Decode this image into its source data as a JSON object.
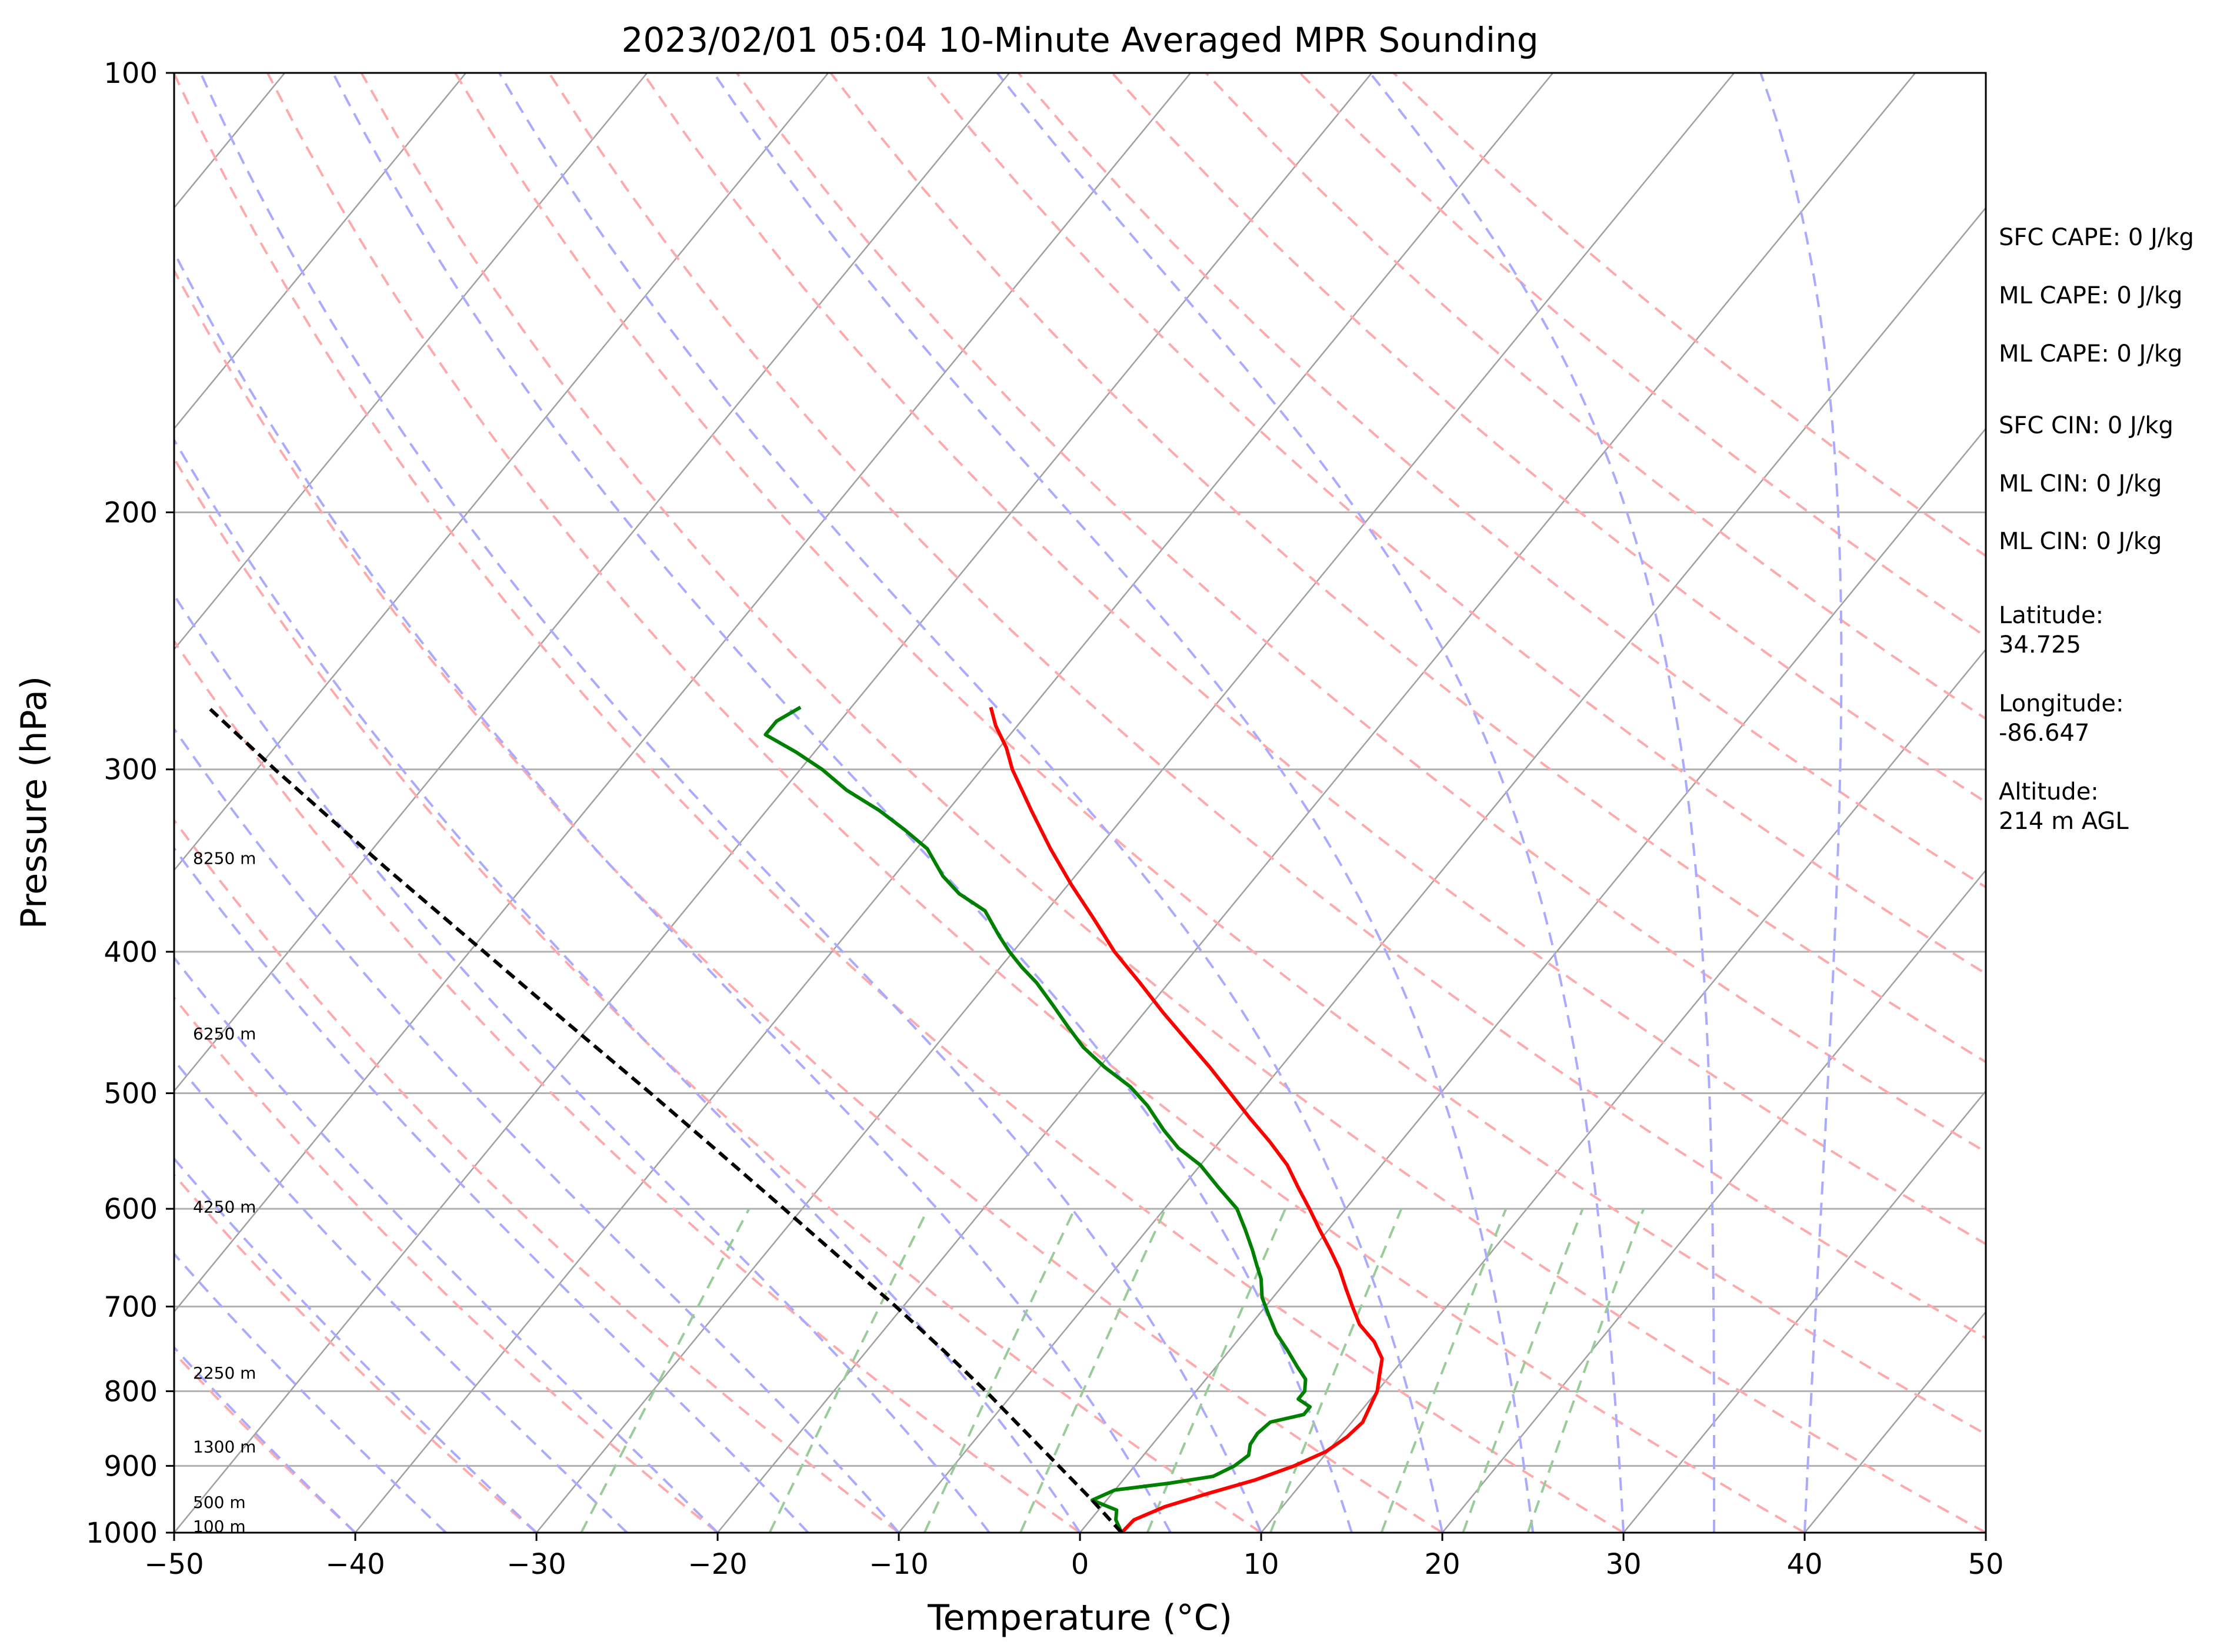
{
  "chart_data": {
    "type": "line",
    "title": "2023/02/01 05:04 10-Minute Averaged MPR Sounding",
    "xlabel": "Temperature (°C)",
    "ylabel": "Pressure (hPa)",
    "xlim": [
      -50,
      50
    ],
    "ylim": [
      1000,
      100
    ],
    "y_scale": "log",
    "skew_t": true,
    "grid": true,
    "x_ticks": [
      "−50",
      "−40",
      "−30",
      "−20",
      "−10",
      "0",
      "10",
      "20",
      "30",
      "40",
      "50"
    ],
    "y_ticks": [
      "100",
      "200",
      "300",
      "400",
      "500",
      "600",
      "700",
      "800",
      "900",
      "1000"
    ],
    "series": [
      {
        "role": "temperature",
        "color": "#ff0000",
        "x_pressure_hPa": [
          1000,
          980,
          960,
          940,
          920,
          900,
          880,
          860,
          840,
          820,
          800,
          780,
          760,
          740,
          720,
          700,
          680,
          660,
          640,
          620,
          600,
          580,
          560,
          540,
          520,
          500,
          480,
          460,
          440,
          420,
          400,
          380,
          360,
          340,
          320,
          300,
          290,
          280,
          272
        ],
        "y_temperature_C": [
          2.3,
          2.4,
          3.5,
          5.3,
          7.3,
          8.8,
          9.9,
          10.4,
          10.6,
          10.3,
          10.0,
          9.4,
          8.8,
          7.6,
          6.0,
          4.8,
          3.6,
          2.4,
          1.0,
          -0.5,
          -2.0,
          -3.6,
          -5.2,
          -7.2,
          -9.4,
          -11.6,
          -13.9,
          -16.4,
          -19.0,
          -21.6,
          -24.4,
          -27.0,
          -29.8,
          -32.6,
          -35.4,
          -38.3,
          -39.6,
          -41.2,
          -42.3
        ]
      },
      {
        "role": "dewpoint",
        "color": "#008000",
        "x_pressure_hPa": [
          1000,
          980,
          965,
          950,
          935,
          925,
          915,
          900,
          885,
          870,
          855,
          840,
          830,
          820,
          810,
          800,
          785,
          770,
          750,
          730,
          710,
          690,
          670,
          655,
          640,
          620,
          600,
          580,
          560,
          545,
          530,
          510,
          495,
          480,
          465,
          450,
          435,
          420,
          410,
          400,
          390,
          375,
          365,
          355,
          340,
          330,
          320,
          310,
          300,
          292,
          284,
          278,
          272
        ],
        "y_temperature_C": [
          2.3,
          1.4,
          1.0,
          -0.8,
          0.0,
          2.7,
          4.8,
          5.5,
          5.8,
          5.4,
          5.3,
          5.5,
          7.0,
          7.0,
          6.0,
          6.0,
          5.5,
          4.5,
          3.2,
          1.8,
          0.6,
          -0.6,
          -1.5,
          -2.4,
          -3.3,
          -4.6,
          -6.0,
          -8.0,
          -10.0,
          -12.0,
          -13.6,
          -15.6,
          -17.4,
          -19.7,
          -21.8,
          -23.6,
          -25.4,
          -27.3,
          -28.8,
          -30.2,
          -31.5,
          -33.4,
          -35.6,
          -37.3,
          -39.4,
          -41.5,
          -43.8,
          -46.5,
          -48.8,
          -51.0,
          -53.5,
          -53.5,
          -52.8
        ]
      },
      {
        "role": "parcel",
        "color": "#000000",
        "style": "dashed",
        "x_pressure_hPa": [
          1000,
          950,
          900,
          850,
          800,
          750,
          700,
          650,
          600,
          550,
          500,
          450,
          400,
          350,
          300,
          272
        ],
        "y_temperature_C": [
          2.3,
          -0.8,
          -4.2,
          -7.8,
          -11.6,
          -15.8,
          -20.4,
          -25.5,
          -31.0,
          -37.0,
          -43.6,
          -51.0,
          -59.2,
          -68.5,
          -79.0,
          -85.5
        ]
      }
    ],
    "height_labels": [
      "8250 m",
      "6250 m",
      "4250 m",
      "2250 m",
      "1300 m",
      "500 m",
      "100 m"
    ],
    "height_label_pressures_hPa": [
      345,
      455,
      598,
      777,
      873,
      953,
      990
    ],
    "reference_lines": {
      "isotherms_color": "#a0a0a0",
      "dry_adiabats_color": "#ffaaaa",
      "moist_adiabats_color": "#aaaaff",
      "mixing_ratio_color": "#99cc99"
    }
  },
  "indices": [
    "SFC CAPE: 0 J/kg",
    "ML CAPE: 0 J/kg",
    "ML CAPE: 0 J/kg",
    "SFC CIN: 0 J/kg",
    "ML CIN: 0 J/kg",
    "ML CIN: 0 J/kg"
  ],
  "location": {
    "latitude_label": "Latitude:",
    "latitude_value": "34.725",
    "longitude_label": "Longitude:",
    "longitude_value": "-86.647",
    "altitude_label": "Altitude:",
    "altitude_value": "214 m AGL"
  }
}
